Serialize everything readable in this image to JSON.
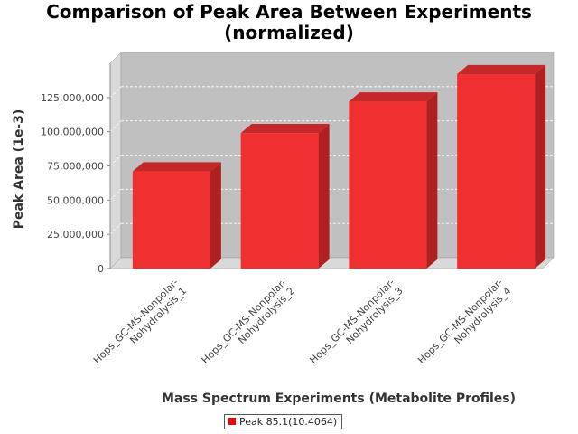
{
  "chart_data": {
    "type": "bar",
    "title": [
      "Comparison of Peak Area Between Experiments",
      "(normalized)"
    ],
    "xlabel": "Mass Spectrum Experiments (Metabolite Profiles)",
    "ylabel": "Peak Area (1e-3)",
    "categories": [
      [
        "Hops_GC-MS-Nonpolar-",
        "Nohydrolysis_1"
      ],
      [
        "Hops_GC-MS-Nonpolar-",
        "Nohydrolysis_2"
      ],
      [
        "Hops_GC-MS-Nonpolar-",
        "Nohydrolysis_3"
      ],
      [
        "Hops_GC-MS-Nonpolar-",
        "Nohydrolysis_4"
      ]
    ],
    "series": [
      {
        "name": "Peak 85.1(10.4064)",
        "color": "#ff0000",
        "values": [
          71000000,
          99000000,
          122000000,
          142000000
        ]
      }
    ],
    "ylim": [
      0,
      150000000
    ],
    "yticks": [
      {
        "value": 0,
        "label": "0"
      },
      {
        "value": 25000000,
        "label": "25,000,000"
      },
      {
        "value": 50000000,
        "label": "50,000,000"
      },
      {
        "value": 75000000,
        "label": "75,000,000"
      },
      {
        "value": 100000000,
        "label": "100,000,000"
      },
      {
        "value": 125000000,
        "label": "125,000,000"
      }
    ],
    "grid": true,
    "legend": "bottom"
  }
}
